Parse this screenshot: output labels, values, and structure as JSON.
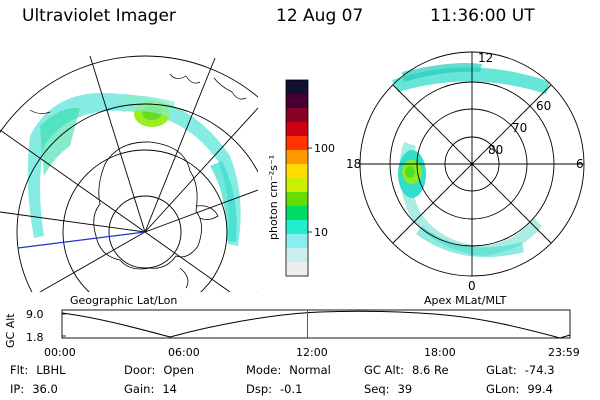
{
  "header": {
    "instrument": "Ultraviolet Imager",
    "date": "12 Aug 07",
    "time": "11:36:00 UT"
  },
  "geo_panel": {
    "caption": "Geographic Lat/Lon"
  },
  "apex_panel": {
    "caption": "Apex MLat/MLT",
    "mlt_labels": [
      "12",
      "18",
      "6",
      "0"
    ],
    "mlat_labels": [
      "60",
      "70",
      "80"
    ]
  },
  "colorbar": {
    "unit_label": "photon cm⁻²s⁻¹",
    "ticks": [
      "100",
      "10"
    ],
    "colors": [
      "#111133",
      "#440033",
      "#880022",
      "#cc0011",
      "#ff3300",
      "#ff9900",
      "#ffdd00",
      "#ccee00",
      "#66dd00",
      "#00dd66",
      "#22eecc",
      "#88eeee",
      "#cceeee",
      "#eeeeee"
    ]
  },
  "alt_plot": {
    "ylabel": "GC Alt",
    "ytick_top": "9.0",
    "ytick_bottom": "1.8",
    "xticks": [
      "00:00",
      "06:00",
      "12:00",
      "18:00",
      "23:59"
    ],
    "marker_fraction": 0.4833
  },
  "footer": {
    "row1": [
      {
        "label": "Flt:",
        "value": "LBHL"
      },
      {
        "label": "Door:",
        "value": "Open"
      },
      {
        "label": "Mode:",
        "value": "Normal"
      },
      {
        "label": "GC Alt:",
        "value": "8.6 Re"
      },
      {
        "label": "GLat:",
        "value": "-74.3"
      }
    ],
    "row2": [
      {
        "label": "IP:",
        "value": "36.0"
      },
      {
        "label": "Gain:",
        "value": "14"
      },
      {
        "label": "Dsp:",
        "value": "-0.1"
      },
      {
        "label": "Seq:",
        "value": "39"
      },
      {
        "label": "GLon:",
        "value": "99.4"
      }
    ]
  }
}
